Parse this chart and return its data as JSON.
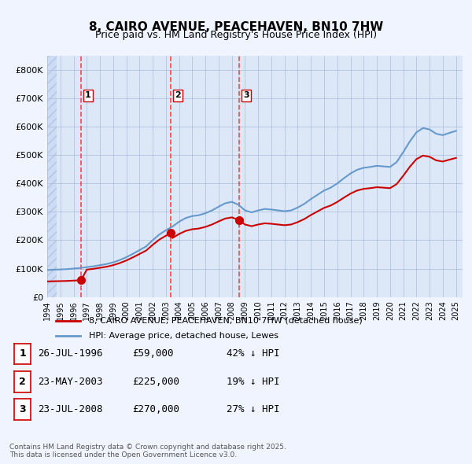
{
  "title": "8, CAIRO AVENUE, PEACEHAVEN, BN10 7HW",
  "subtitle": "Price paid vs. HM Land Registry's House Price Index (HPI)",
  "ylabel": "",
  "ylim": [
    0,
    850000
  ],
  "yticks": [
    0,
    100000,
    200000,
    300000,
    400000,
    500000,
    600000,
    700000,
    800000
  ],
  "ytick_labels": [
    "£0",
    "£100K",
    "£200K",
    "£300K",
    "£400K",
    "£500K",
    "£600K",
    "£700K",
    "£800K"
  ],
  "bg_color": "#f0f4ff",
  "plot_bg": "#dce8f8",
  "hatch_color": "#c8d8f0",
  "grid_color": "#aabbdd",
  "sale_color": "#cc0000",
  "hpi_color": "#6699cc",
  "vline_color": "#ff4444",
  "sale_dates": [
    1996.57,
    2003.39,
    2008.56
  ],
  "sale_prices": [
    59000,
    225000,
    270000
  ],
  "sale_labels": [
    "1",
    "2",
    "3"
  ],
  "legend_sale": "8, CAIRO AVENUE, PEACEHAVEN, BN10 7HW (detached house)",
  "legend_hpi": "HPI: Average price, detached house, Lewes",
  "table_rows": [
    [
      "1",
      "26-JUL-1996",
      "£59,000",
      "42% ↓ HPI"
    ],
    [
      "2",
      "23-MAY-2003",
      "£225,000",
      "19% ↓ HPI"
    ],
    [
      "3",
      "23-JUL-2008",
      "£270,000",
      "27% ↓ HPI"
    ]
  ],
  "footer": "Contains HM Land Registry data © Crown copyright and database right 2025.\nThis data is licensed under the Open Government Licence v3.0.",
  "hpi_x": [
    1994,
    1994.5,
    1995,
    1995.5,
    1996,
    1996.5,
    1997,
    1997.5,
    1998,
    1998.5,
    1999,
    1999.5,
    2000,
    2000.5,
    2001,
    2001.5,
    2002,
    2002.5,
    2003,
    2003.5,
    2004,
    2004.5,
    2005,
    2005.5,
    2006,
    2006.5,
    2007,
    2007.5,
    2008,
    2008.5,
    2009,
    2009.5,
    2010,
    2010.5,
    2011,
    2011.5,
    2012,
    2012.5,
    2013,
    2013.5,
    2014,
    2014.5,
    2015,
    2015.5,
    2016,
    2016.5,
    2017,
    2017.5,
    2018,
    2018.5,
    2019,
    2019.5,
    2020,
    2020.5,
    2021,
    2021.5,
    2022,
    2022.5,
    2023,
    2023.5,
    2024,
    2024.5,
    2025
  ],
  "hpi_y": [
    95000,
    96000,
    97000,
    98000,
    100000,
    102000,
    105000,
    108000,
    112000,
    116000,
    122000,
    130000,
    140000,
    152000,
    165000,
    178000,
    200000,
    220000,
    235000,
    248000,
    265000,
    278000,
    285000,
    288000,
    295000,
    305000,
    318000,
    330000,
    335000,
    325000,
    305000,
    298000,
    305000,
    310000,
    308000,
    305000,
    302000,
    305000,
    315000,
    328000,
    345000,
    360000,
    375000,
    385000,
    400000,
    418000,
    435000,
    448000,
    455000,
    458000,
    462000,
    460000,
    458000,
    475000,
    510000,
    548000,
    580000,
    595000,
    590000,
    575000,
    570000,
    578000,
    585000
  ],
  "xmin": 1994,
  "xmax": 2025.5,
  "xtick_years": [
    1994,
    1995,
    1996,
    1997,
    1998,
    1999,
    2000,
    2001,
    2002,
    2003,
    2004,
    2005,
    2006,
    2007,
    2008,
    2009,
    2010,
    2011,
    2012,
    2013,
    2014,
    2015,
    2016,
    2017,
    2018,
    2019,
    2020,
    2021,
    2022,
    2023,
    2024,
    2025
  ]
}
